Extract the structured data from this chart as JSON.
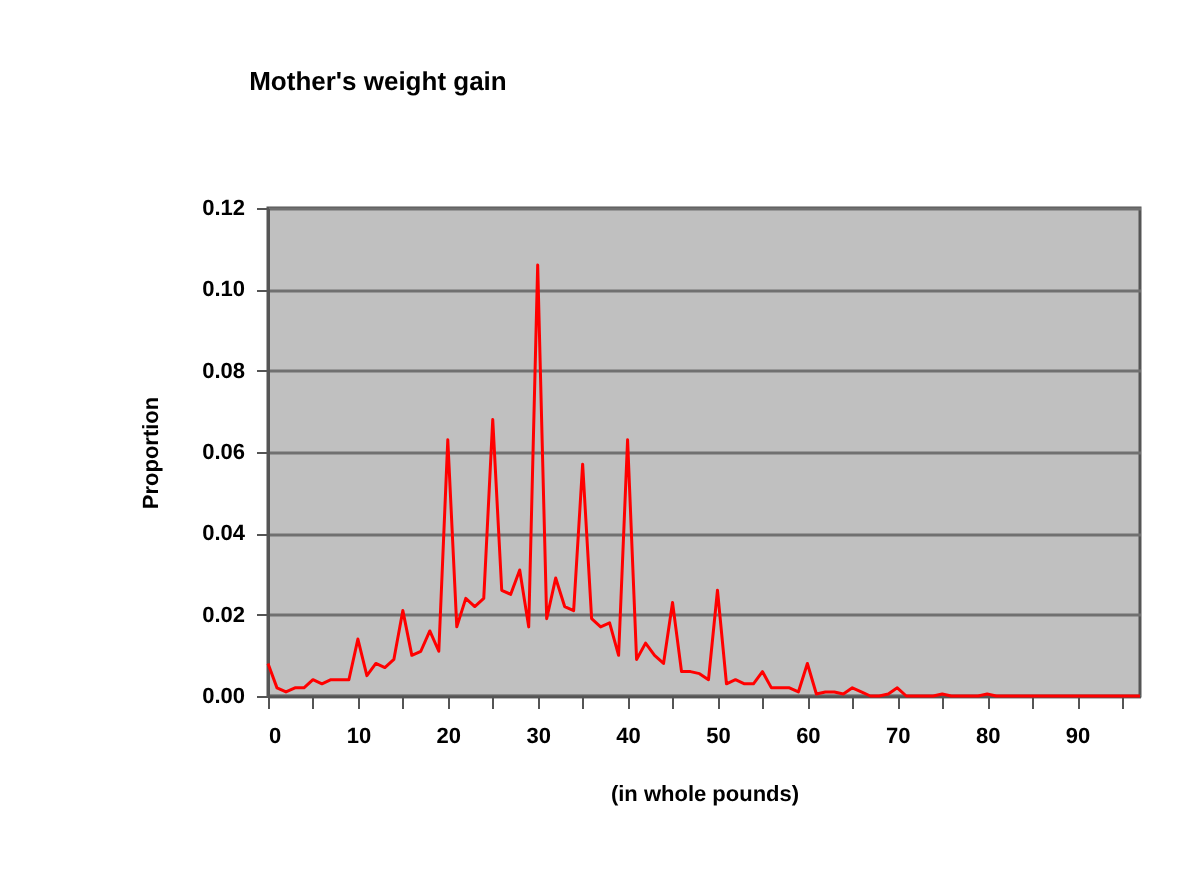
{
  "chart_data": {
    "type": "line",
    "title": "Mother's weight gain",
    "xlabel": "(in whole pounds)",
    "ylabel": "Proportion",
    "x": [
      0,
      1,
      2,
      3,
      4,
      5,
      6,
      7,
      8,
      9,
      10,
      11,
      12,
      13,
      14,
      15,
      16,
      17,
      18,
      19,
      20,
      21,
      22,
      23,
      24,
      25,
      26,
      27,
      28,
      29,
      30,
      31,
      32,
      33,
      34,
      35,
      36,
      37,
      38,
      39,
      40,
      41,
      42,
      43,
      44,
      45,
      46,
      47,
      48,
      49,
      50,
      51,
      52,
      53,
      54,
      55,
      56,
      57,
      58,
      59,
      60,
      61,
      62,
      63,
      64,
      65,
      66,
      67,
      68,
      69,
      70,
      71,
      72,
      73,
      74,
      75,
      76,
      77,
      78,
      79,
      80,
      81,
      82,
      83,
      84,
      85,
      86,
      87,
      88,
      89,
      90,
      91,
      92,
      93,
      94,
      95,
      96,
      97
    ],
    "series": [
      {
        "color": "#ff0000",
        "values": [
          0.008,
          0.002,
          0.001,
          0.002,
          0.002,
          0.004,
          0.003,
          0.004,
          0.004,
          0.004,
          0.014,
          0.005,
          0.008,
          0.007,
          0.009,
          0.021,
          0.01,
          0.011,
          0.016,
          0.011,
          0.063,
          0.017,
          0.024,
          0.022,
          0.024,
          0.068,
          0.026,
          0.025,
          0.031,
          0.017,
          0.106,
          0.019,
          0.029,
          0.022,
          0.021,
          0.057,
          0.019,
          0.017,
          0.018,
          0.01,
          0.063,
          0.009,
          0.013,
          0.01,
          0.008,
          0.023,
          0.006,
          0.006,
          0.0055,
          0.004,
          0.026,
          0.003,
          0.004,
          0.003,
          0.003,
          0.006,
          0.002,
          0.002,
          0.002,
          0.001,
          0.008,
          0.0005,
          0.001,
          0.001,
          0.0005,
          0.002,
          0.001,
          0,
          0,
          0.0005,
          0.002,
          0,
          0,
          0,
          0,
          0.0005,
          0,
          0,
          0,
          0,
          0.0005,
          0,
          0,
          0,
          0,
          0,
          0,
          0,
          0,
          0,
          0,
          0,
          0,
          0,
          0,
          0,
          0,
          0
        ]
      }
    ],
    "xlim": [
      0,
      97
    ],
    "ylim": [
      0,
      0.12
    ],
    "xticks": [
      0,
      {
        "value": 5,
        "label": null
      },
      10,
      {
        "value": 15,
        "label": null
      },
      20,
      {
        "value": 25,
        "label": null
      },
      30,
      {
        "value": 35,
        "label": null
      },
      40,
      {
        "value": 45,
        "label": null
      },
      50,
      {
        "value": 55,
        "label": null
      },
      60,
      {
        "value": 65,
        "label": null
      },
      70,
      {
        "value": 75,
        "label": null
      },
      80,
      {
        "value": 85,
        "label": null
      },
      90,
      {
        "value": 95,
        "label": null
      }
    ],
    "yticks": [
      {
        "value": 0,
        "label": "0.00"
      },
      {
        "value": 0.02,
        "label": "0.02"
      },
      {
        "value": 0.04,
        "label": "0.04"
      },
      {
        "value": 0.06,
        "label": "0.06"
      },
      {
        "value": 0.08,
        "label": "0.08"
      },
      {
        "value": 0.1,
        "label": "0.10"
      },
      {
        "value": 0.12,
        "label": "0.12"
      }
    ],
    "grid": "y",
    "legend": false,
    "marker": "none",
    "line_style": "solid"
  }
}
